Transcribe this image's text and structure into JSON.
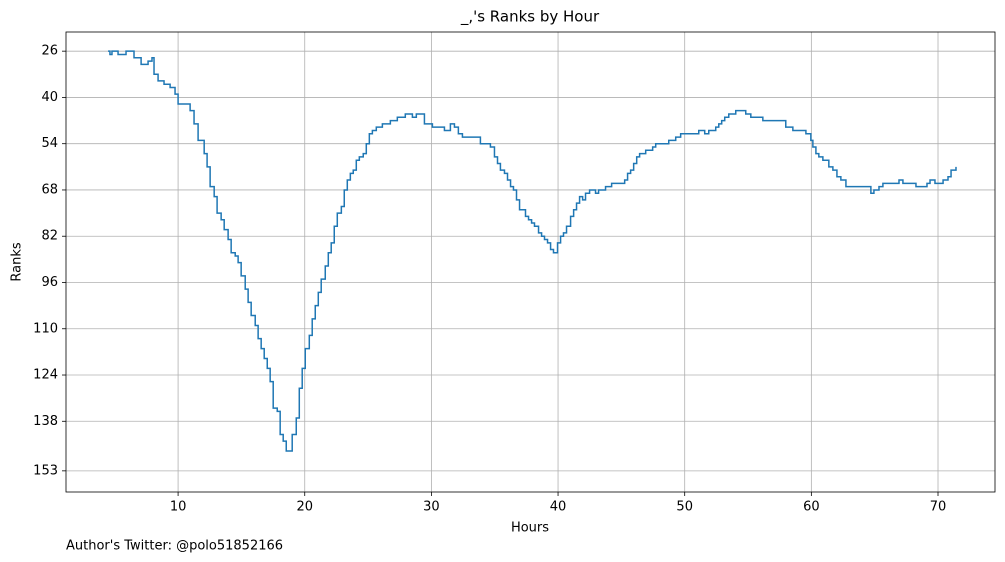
{
  "chart_data": {
    "type": "step",
    "title": "_,'s Ranks by Hour",
    "xlabel": "Hours",
    "ylabel": "Ranks",
    "footnote": "Author's Twitter: @polo51852166",
    "xlim": [
      1.15,
      74.5
    ],
    "xticks": [
      10,
      20,
      30,
      40,
      50,
      60,
      70
    ],
    "ylim": [
      20.2,
      159.4
    ],
    "invert_y": true,
    "yticks": [
      26,
      40,
      54,
      68,
      82,
      96,
      110,
      124,
      138,
      153
    ],
    "grid": true,
    "series": [
      {
        "color": "#1f77b4",
        "x": [
          4.47,
          4.62,
          4.78,
          5.26,
          5.89,
          6.52,
          7.08,
          7.63,
          7.94,
          8.1,
          8.42,
          8.89,
          9.37,
          9.76,
          10.0,
          10.55,
          10.95,
          11.26,
          11.58,
          12.06,
          12.29,
          12.53,
          12.85,
          13.08,
          13.4,
          13.64,
          13.95,
          14.19,
          14.51,
          14.74,
          14.98,
          15.3,
          15.53,
          15.77,
          16.09,
          16.32,
          16.56,
          16.8,
          17.04,
          17.27,
          17.51,
          17.83,
          18.06,
          18.3,
          18.54,
          18.85,
          19.01,
          19.33,
          19.57,
          19.8,
          20.04,
          20.36,
          20.59,
          20.83,
          21.07,
          21.3,
          21.62,
          21.86,
          22.09,
          22.33,
          22.57,
          22.89,
          23.12,
          23.36,
          23.6,
          23.83,
          24.07,
          24.31,
          24.62,
          24.86,
          25.1,
          25.34,
          25.65,
          26.13,
          26.76,
          27.31,
          27.94,
          28.5,
          28.81,
          29.45,
          30.08,
          31.03,
          31.5,
          31.82,
          32.13,
          32.45,
          33.72,
          33.87,
          34.66,
          34.98,
          35.22,
          35.45,
          35.77,
          36.01,
          36.25,
          36.48,
          36.72,
          36.96,
          37.43,
          37.67,
          37.91,
          38.14,
          38.46,
          38.7,
          38.93,
          39.17,
          39.41,
          39.64,
          39.96,
          40.2,
          40.43,
          40.67,
          40.99,
          41.23,
          41.46,
          41.7,
          41.94,
          42.17,
          42.49,
          42.96,
          43.2,
          43.75,
          44.23,
          44.94,
          45.26,
          45.49,
          45.73,
          45.97,
          46.21,
          46.44,
          46.92,
          47.47,
          47.71,
          48.5,
          48.74,
          49.29,
          49.68,
          51.11,
          51.58,
          51.9,
          52.45,
          52.69,
          52.92,
          53.16,
          53.48,
          54.03,
          54.82,
          55.22,
          56.17,
          57.59,
          57.98,
          58.54,
          59.57,
          59.96,
          60.12,
          60.36,
          60.59,
          60.91,
          61.38,
          61.7,
          62.02,
          62.33,
          62.73,
          64.47,
          64.7,
          64.94,
          65.34,
          65.65,
          66.52,
          66.92,
          67.23,
          67.71,
          68.26,
          69.13,
          69.37,
          69.76,
          70.4,
          70.79,
          71.03,
          71.42
        ],
        "values": [
          26,
          27,
          26,
          27,
          26,
          28,
          30,
          29,
          28,
          33,
          35,
          36,
          37,
          39,
          42,
          42,
          44,
          48,
          53,
          57,
          61,
          67,
          70,
          75,
          77,
          80,
          83,
          87,
          88,
          90,
          94,
          98,
          102,
          106,
          109,
          113,
          116,
          119,
          122,
          126,
          134,
          135,
          142,
          144,
          147,
          147,
          142,
          137,
          128,
          122,
          116,
          112,
          107,
          103,
          99,
          95,
          91,
          87,
          84,
          79,
          75,
          73,
          68,
          65,
          63,
          62,
          59,
          58,
          57,
          54,
          51,
          50,
          49,
          48,
          47,
          46,
          45,
          46,
          45,
          48,
          49,
          50,
          48,
          49,
          51,
          52,
          52,
          54,
          55,
          58,
          60,
          62,
          63,
          65,
          67,
          68,
          71,
          74,
          76,
          77,
          78,
          79,
          81,
          82,
          83,
          84,
          86,
          87,
          84,
          82,
          81,
          79,
          76,
          74,
          72,
          70,
          71,
          69,
          68,
          69,
          68,
          67,
          66,
          66,
          65,
          63,
          62,
          60,
          58,
          57,
          56,
          55,
          54,
          54,
          53,
          52,
          51,
          50,
          51,
          50,
          49,
          48,
          47,
          46,
          45,
          44,
          45,
          46,
          47,
          47,
          49,
          50,
          51,
          53,
          55,
          57,
          58,
          59,
          61,
          62,
          64,
          65,
          67,
          67,
          69,
          68,
          67,
          66,
          66,
          65,
          66,
          66,
          67,
          66,
          65,
          66,
          65,
          64,
          62,
          61
        ]
      }
    ]
  }
}
